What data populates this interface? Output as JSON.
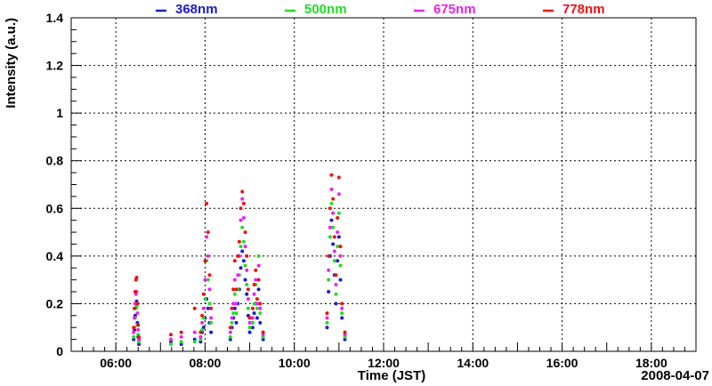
{
  "chart_data": {
    "type": "scatter",
    "xlabel": "Time (JST)",
    "ylabel": "Intensity (a.u.)",
    "date_label": "2008-04-07",
    "xlim": [
      "05:00",
      "19:00"
    ],
    "ylim": [
      0,
      1.4
    ],
    "x_ticks": [
      "06:00",
      "08:00",
      "10:00",
      "12:00",
      "14:00",
      "16:00",
      "18:00"
    ],
    "y_ticks": [
      "0",
      "0.2",
      "0.4",
      "0.6",
      "0.8",
      "1",
      "1.2",
      "1.4"
    ],
    "grid": true,
    "legend_position": "top",
    "series": [
      {
        "name": "368nm",
        "color": "#1a1ad6",
        "points": [
          [
            "06:24",
            0.05
          ],
          [
            "06:25",
            0.09
          ],
          [
            "06:26",
            0.15
          ],
          [
            "06:27",
            0.2
          ],
          [
            "06:28",
            0.21
          ],
          [
            "06:29",
            0.12
          ],
          [
            "06:30",
            0.06
          ],
          [
            "06:31",
            0.03
          ],
          [
            "07:14",
            0.04
          ],
          [
            "07:28",
            0.03
          ],
          [
            "07:46",
            0.05
          ],
          [
            "07:54",
            0.04
          ],
          [
            "07:56",
            0.08
          ],
          [
            "07:58",
            0.1
          ],
          [
            "08:00",
            0.14
          ],
          [
            "08:02",
            0.22
          ],
          [
            "08:04",
            0.18
          ],
          [
            "08:06",
            0.12
          ],
          [
            "08:08",
            0.08
          ],
          [
            "08:34",
            0.05
          ],
          [
            "08:36",
            0.1
          ],
          [
            "08:38",
            0.14
          ],
          [
            "08:40",
            0.18
          ],
          [
            "08:42",
            0.12
          ],
          [
            "08:44",
            0.2
          ],
          [
            "08:46",
            0.26
          ],
          [
            "08:48",
            0.35
          ],
          [
            "08:50",
            0.42
          ],
          [
            "08:52",
            0.38
          ],
          [
            "08:54",
            0.3
          ],
          [
            "08:56",
            0.24
          ],
          [
            "08:58",
            0.15
          ],
          [
            "09:00",
            0.08
          ],
          [
            "09:04",
            0.1
          ],
          [
            "09:06",
            0.16
          ],
          [
            "09:08",
            0.2
          ],
          [
            "09:10",
            0.14
          ],
          [
            "09:12",
            0.26
          ],
          [
            "09:14",
            0.12
          ],
          [
            "09:18",
            0.05
          ],
          [
            "10:44",
            0.1
          ],
          [
            "10:46",
            0.25
          ],
          [
            "10:48",
            0.4
          ],
          [
            "10:50",
            0.55
          ],
          [
            "10:52",
            0.45
          ],
          [
            "10:54",
            0.32
          ],
          [
            "10:56",
            0.2
          ],
          [
            "10:58",
            0.38
          ],
          [
            "11:00",
            0.48
          ],
          [
            "11:02",
            0.3
          ],
          [
            "11:04",
            0.14
          ],
          [
            "11:08",
            0.05
          ]
        ]
      },
      {
        "name": "500nm",
        "color": "#22dd22",
        "points": [
          [
            "06:24",
            0.06
          ],
          [
            "06:25",
            0.1
          ],
          [
            "06:26",
            0.14
          ],
          [
            "06:27",
            0.18
          ],
          [
            "06:28",
            0.19
          ],
          [
            "06:29",
            0.11
          ],
          [
            "06:30",
            0.07
          ],
          [
            "06:31",
            0.04
          ],
          [
            "07:14",
            0.03
          ],
          [
            "07:28",
            0.04
          ],
          [
            "07:46",
            0.04
          ],
          [
            "07:54",
            0.05
          ],
          [
            "07:56",
            0.09
          ],
          [
            "07:58",
            0.14
          ],
          [
            "08:00",
            0.22
          ],
          [
            "08:02",
            0.38
          ],
          [
            "08:04",
            0.3
          ],
          [
            "08:06",
            0.2
          ],
          [
            "08:08",
            0.12
          ],
          [
            "08:34",
            0.06
          ],
          [
            "08:36",
            0.12
          ],
          [
            "08:38",
            0.16
          ],
          [
            "08:40",
            0.24
          ],
          [
            "08:42",
            0.16
          ],
          [
            "08:44",
            0.26
          ],
          [
            "08:46",
            0.32
          ],
          [
            "08:48",
            0.44
          ],
          [
            "08:50",
            0.52
          ],
          [
            "08:52",
            0.46
          ],
          [
            "08:54",
            0.36
          ],
          [
            "08:56",
            0.28
          ],
          [
            "08:58",
            0.18
          ],
          [
            "09:00",
            0.1
          ],
          [
            "09:04",
            0.12
          ],
          [
            "09:06",
            0.2
          ],
          [
            "09:08",
            0.28
          ],
          [
            "09:10",
            0.18
          ],
          [
            "09:12",
            0.4
          ],
          [
            "09:14",
            0.16
          ],
          [
            "09:18",
            0.06
          ],
          [
            "10:44",
            0.12
          ],
          [
            "10:46",
            0.3
          ],
          [
            "10:48",
            0.48
          ],
          [
            "10:50",
            0.62
          ],
          [
            "10:52",
            0.52
          ],
          [
            "10:54",
            0.38
          ],
          [
            "10:56",
            0.24
          ],
          [
            "10:58",
            0.44
          ],
          [
            "11:00",
            0.58
          ],
          [
            "11:02",
            0.36
          ],
          [
            "11:04",
            0.16
          ],
          [
            "11:08",
            0.06
          ]
        ]
      },
      {
        "name": "675nm",
        "color": "#ee22ee",
        "points": [
          [
            "06:24",
            0.08
          ],
          [
            "06:25",
            0.14
          ],
          [
            "06:26",
            0.2
          ],
          [
            "06:27",
            0.24
          ],
          [
            "06:28",
            0.25
          ],
          [
            "06:29",
            0.16
          ],
          [
            "06:30",
            0.09
          ],
          [
            "06:31",
            0.05
          ],
          [
            "07:14",
            0.05
          ],
          [
            "07:28",
            0.06
          ],
          [
            "07:46",
            0.08
          ],
          [
            "07:54",
            0.06
          ],
          [
            "07:56",
            0.12
          ],
          [
            "07:58",
            0.18
          ],
          [
            "08:00",
            0.3
          ],
          [
            "08:02",
            0.48
          ],
          [
            "08:04",
            0.4
          ],
          [
            "08:06",
            0.26
          ],
          [
            "08:08",
            0.14
          ],
          [
            "08:34",
            0.08
          ],
          [
            "08:36",
            0.14
          ],
          [
            "08:38",
            0.2
          ],
          [
            "08:40",
            0.3
          ],
          [
            "08:42",
            0.2
          ],
          [
            "08:44",
            0.32
          ],
          [
            "08:46",
            0.4
          ],
          [
            "08:48",
            0.55
          ],
          [
            "08:50",
            0.64
          ],
          [
            "08:52",
            0.56
          ],
          [
            "08:54",
            0.44
          ],
          [
            "08:56",
            0.34
          ],
          [
            "08:58",
            0.22
          ],
          [
            "09:00",
            0.12
          ],
          [
            "09:04",
            0.14
          ],
          [
            "09:06",
            0.24
          ],
          [
            "09:08",
            0.3
          ],
          [
            "09:10",
            0.2
          ],
          [
            "09:12",
            0.36
          ],
          [
            "09:14",
            0.18
          ],
          [
            "09:18",
            0.07
          ],
          [
            "10:44",
            0.14
          ],
          [
            "10:46",
            0.34
          ],
          [
            "10:48",
            0.52
          ],
          [
            "10:50",
            0.68
          ],
          [
            "10:52",
            0.58
          ],
          [
            "10:54",
            0.42
          ],
          [
            "10:56",
            0.28
          ],
          [
            "10:58",
            0.5
          ],
          [
            "11:00",
            0.66
          ],
          [
            "11:02",
            0.4
          ],
          [
            "11:04",
            0.18
          ],
          [
            "11:08",
            0.07
          ]
        ]
      },
      {
        "name": "778nm",
        "color": "#ee1111",
        "points": [
          [
            "06:24",
            0.1
          ],
          [
            "06:25",
            0.18
          ],
          [
            "06:26",
            0.25
          ],
          [
            "06:27",
            0.3
          ],
          [
            "06:28",
            0.31
          ],
          [
            "06:29",
            0.2
          ],
          [
            "06:30",
            0.11
          ],
          [
            "06:31",
            0.06
          ],
          [
            "07:14",
            0.07
          ],
          [
            "07:28",
            0.08
          ],
          [
            "07:46",
            0.18
          ],
          [
            "07:54",
            0.08
          ],
          [
            "07:56",
            0.15
          ],
          [
            "07:58",
            0.24
          ],
          [
            "08:00",
            0.38
          ],
          [
            "08:02",
            0.62
          ],
          [
            "08:04",
            0.5
          ],
          [
            "08:06",
            0.32
          ],
          [
            "08:08",
            0.18
          ],
          [
            "08:34",
            0.1
          ],
          [
            "08:36",
            0.18
          ],
          [
            "08:38",
            0.26
          ],
          [
            "08:40",
            0.38
          ],
          [
            "08:42",
            0.26
          ],
          [
            "08:44",
            0.4
          ],
          [
            "08:46",
            0.46
          ],
          [
            "08:48",
            0.6
          ],
          [
            "08:50",
            0.67
          ],
          [
            "08:52",
            0.62
          ],
          [
            "08:54",
            0.5
          ],
          [
            "08:56",
            0.4
          ],
          [
            "08:58",
            0.26
          ],
          [
            "09:00",
            0.14
          ],
          [
            "09:04",
            0.18
          ],
          [
            "09:06",
            0.28
          ],
          [
            "09:08",
            0.34
          ],
          [
            "09:10",
            0.22
          ],
          [
            "09:12",
            0.3
          ],
          [
            "09:14",
            0.2
          ],
          [
            "09:18",
            0.08
          ],
          [
            "10:44",
            0.16
          ],
          [
            "10:46",
            0.4
          ],
          [
            "10:48",
            0.6
          ],
          [
            "10:50",
            0.74
          ],
          [
            "10:52",
            0.64
          ],
          [
            "10:54",
            0.48
          ],
          [
            "10:56",
            0.32
          ],
          [
            "10:58",
            0.56
          ],
          [
            "11:00",
            0.73
          ],
          [
            "11:02",
            0.44
          ],
          [
            "11:04",
            0.2
          ],
          [
            "11:08",
            0.08
          ]
        ]
      }
    ]
  }
}
